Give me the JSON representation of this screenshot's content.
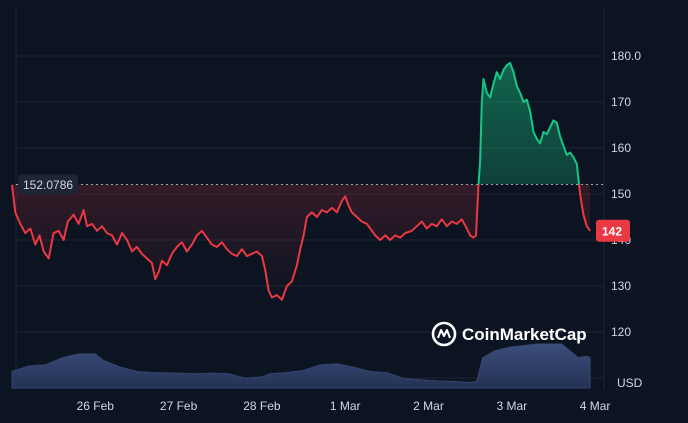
{
  "chart_data": {
    "type": "area",
    "currency": "USD",
    "reference_label": "152.0786",
    "reference_value": 152.0786,
    "current_label": "142",
    "current_value": 142,
    "watermark": "CoinMarketCap",
    "ylim": [
      110,
      185
    ],
    "yticks": [
      "120",
      "130",
      "140",
      "150",
      "160",
      "170",
      "180.0"
    ],
    "ytick_values": [
      120,
      130,
      140,
      150,
      160,
      170,
      180
    ],
    "xticks": [
      "26 Feb",
      "27 Feb",
      "28 Feb",
      "1 Mar",
      "2 Mar",
      "3 Mar",
      "4 Mar"
    ],
    "xtick_values": [
      1,
      2,
      3,
      4,
      5,
      6,
      7
    ],
    "x_range": [
      0,
      7
    ],
    "grid": true,
    "colors": {
      "up": "#16c784",
      "down": "#ea3943",
      "volume": "#34456f",
      "background": "#0d1421",
      "grid": "#1e2535"
    },
    "series": [
      {
        "values": [
          [
            0.0,
            152.0
          ],
          [
            0.04,
            146.0
          ],
          [
            0.1,
            143.5
          ],
          [
            0.16,
            141.5
          ],
          [
            0.22,
            142.5
          ],
          [
            0.28,
            139.0
          ],
          [
            0.33,
            141.0
          ],
          [
            0.38,
            137.5
          ],
          [
            0.44,
            136.0
          ],
          [
            0.5,
            141.5
          ],
          [
            0.56,
            142.0
          ],
          [
            0.62,
            140.0
          ],
          [
            0.67,
            144.0
          ],
          [
            0.74,
            145.5
          ],
          [
            0.8,
            143.5
          ],
          [
            0.86,
            146.5
          ],
          [
            0.9,
            143.0
          ],
          [
            0.96,
            143.5
          ],
          [
            1.02,
            142.0
          ],
          [
            1.08,
            143.0
          ],
          [
            1.14,
            141.5
          ],
          [
            1.2,
            141.0
          ],
          [
            1.26,
            139.0
          ],
          [
            1.32,
            141.5
          ],
          [
            1.38,
            140.0
          ],
          [
            1.44,
            137.5
          ],
          [
            1.5,
            138.5
          ],
          [
            1.56,
            137.0
          ],
          [
            1.62,
            136.0
          ],
          [
            1.68,
            135.0
          ],
          [
            1.72,
            131.5
          ],
          [
            1.76,
            133.0
          ],
          [
            1.8,
            135.5
          ],
          [
            1.86,
            134.5
          ],
          [
            1.92,
            137.0
          ],
          [
            1.98,
            138.5
          ],
          [
            2.04,
            139.5
          ],
          [
            2.1,
            137.5
          ],
          [
            2.16,
            139.0
          ],
          [
            2.22,
            141.0
          ],
          [
            2.28,
            142.0
          ],
          [
            2.34,
            140.5
          ],
          [
            2.4,
            139.0
          ],
          [
            2.46,
            138.5
          ],
          [
            2.52,
            139.5
          ],
          [
            2.58,
            138.0
          ],
          [
            2.64,
            137.0
          ],
          [
            2.7,
            136.5
          ],
          [
            2.76,
            138.0
          ],
          [
            2.82,
            136.5
          ],
          [
            2.88,
            137.0
          ],
          [
            2.94,
            137.5
          ],
          [
            3.0,
            136.5
          ],
          [
            3.04,
            133.5
          ],
          [
            3.08,
            129.0
          ],
          [
            3.12,
            127.5
          ],
          [
            3.18,
            128.0
          ],
          [
            3.24,
            127.0
          ],
          [
            3.3,
            130.0
          ],
          [
            3.36,
            131.0
          ],
          [
            3.42,
            134.5
          ],
          [
            3.46,
            138.0
          ],
          [
            3.5,
            141.0
          ],
          [
            3.54,
            145.0
          ],
          [
            3.6,
            146.0
          ],
          [
            3.66,
            145.0
          ],
          [
            3.72,
            146.5
          ],
          [
            3.78,
            146.0
          ],
          [
            3.84,
            147.0
          ],
          [
            3.9,
            146.0
          ],
          [
            3.96,
            148.5
          ],
          [
            4.0,
            149.5
          ],
          [
            4.04,
            147.5
          ],
          [
            4.08,
            146.0
          ],
          [
            4.14,
            145.0
          ],
          [
            4.2,
            144.0
          ],
          [
            4.26,
            143.5
          ],
          [
            4.3,
            142.5
          ],
          [
            4.36,
            141.0
          ],
          [
            4.42,
            140.0
          ],
          [
            4.48,
            141.0
          ],
          [
            4.54,
            140.0
          ],
          [
            4.6,
            141.0
          ],
          [
            4.66,
            140.5
          ],
          [
            4.72,
            141.5
          ],
          [
            4.8,
            142.0
          ],
          [
            4.86,
            143.0
          ],
          [
            4.92,
            144.0
          ],
          [
            4.98,
            142.5
          ],
          [
            5.04,
            143.5
          ],
          [
            5.1,
            143.0
          ],
          [
            5.16,
            144.5
          ],
          [
            5.22,
            143.0
          ],
          [
            5.28,
            144.0
          ],
          [
            5.34,
            143.5
          ],
          [
            5.4,
            144.5
          ],
          [
            5.46,
            142.5
          ],
          [
            5.5,
            141.0
          ],
          [
            5.54,
            140.5
          ],
          [
            5.57,
            141.0
          ],
          [
            5.6,
            152.0
          ],
          [
            5.62,
            157.0
          ],
          [
            5.64,
            170.0
          ],
          [
            5.66,
            175.0
          ],
          [
            5.7,
            172.0
          ],
          [
            5.74,
            171.0
          ],
          [
            5.78,
            174.0
          ],
          [
            5.82,
            176.5
          ],
          [
            5.86,
            175.0
          ],
          [
            5.9,
            177.0
          ],
          [
            5.94,
            178.0
          ],
          [
            5.98,
            178.5
          ],
          [
            6.02,
            176.5
          ],
          [
            6.06,
            173.5
          ],
          [
            6.1,
            172.0
          ],
          [
            6.14,
            170.0
          ],
          [
            6.18,
            170.5
          ],
          [
            6.22,
            168.0
          ],
          [
            6.26,
            163.5
          ],
          [
            6.3,
            162.0
          ],
          [
            6.34,
            161.0
          ],
          [
            6.38,
            163.5
          ],
          [
            6.42,
            163.0
          ],
          [
            6.46,
            164.5
          ],
          [
            6.5,
            166.0
          ],
          [
            6.54,
            165.5
          ],
          [
            6.58,
            162.5
          ],
          [
            6.62,
            160.5
          ],
          [
            6.66,
            158.5
          ],
          [
            6.7,
            159.0
          ],
          [
            6.74,
            158.0
          ],
          [
            6.78,
            156.5
          ],
          [
            6.82,
            150.0
          ],
          [
            6.86,
            145.5
          ],
          [
            6.9,
            143.0
          ],
          [
            6.94,
            142.0
          ]
        ]
      }
    ],
    "volume": {
      "ylim": [
        0,
        100
      ],
      "values": [
        [
          0.0,
          30
        ],
        [
          0.2,
          40
        ],
        [
          0.4,
          42
        ],
        [
          0.6,
          55
        ],
        [
          0.8,
          62
        ],
        [
          1.0,
          62
        ],
        [
          1.1,
          50
        ],
        [
          1.3,
          38
        ],
        [
          1.5,
          30
        ],
        [
          1.7,
          28
        ],
        [
          2.0,
          27
        ],
        [
          2.2,
          26
        ],
        [
          2.4,
          27
        ],
        [
          2.6,
          26
        ],
        [
          2.8,
          18
        ],
        [
          3.0,
          20
        ],
        [
          3.1,
          26
        ],
        [
          3.3,
          28
        ],
        [
          3.5,
          32
        ],
        [
          3.7,
          42
        ],
        [
          3.9,
          44
        ],
        [
          4.1,
          38
        ],
        [
          4.3,
          30
        ],
        [
          4.5,
          28
        ],
        [
          4.7,
          17
        ],
        [
          4.9,
          15
        ],
        [
          5.1,
          13
        ],
        [
          5.3,
          12
        ],
        [
          5.5,
          10
        ],
        [
          5.58,
          12
        ],
        [
          5.65,
          55
        ],
        [
          5.8,
          68
        ],
        [
          6.0,
          75
        ],
        [
          6.3,
          80
        ],
        [
          6.6,
          80
        ],
        [
          6.8,
          55
        ],
        [
          6.9,
          58
        ],
        [
          6.94,
          55
        ]
      ]
    }
  }
}
